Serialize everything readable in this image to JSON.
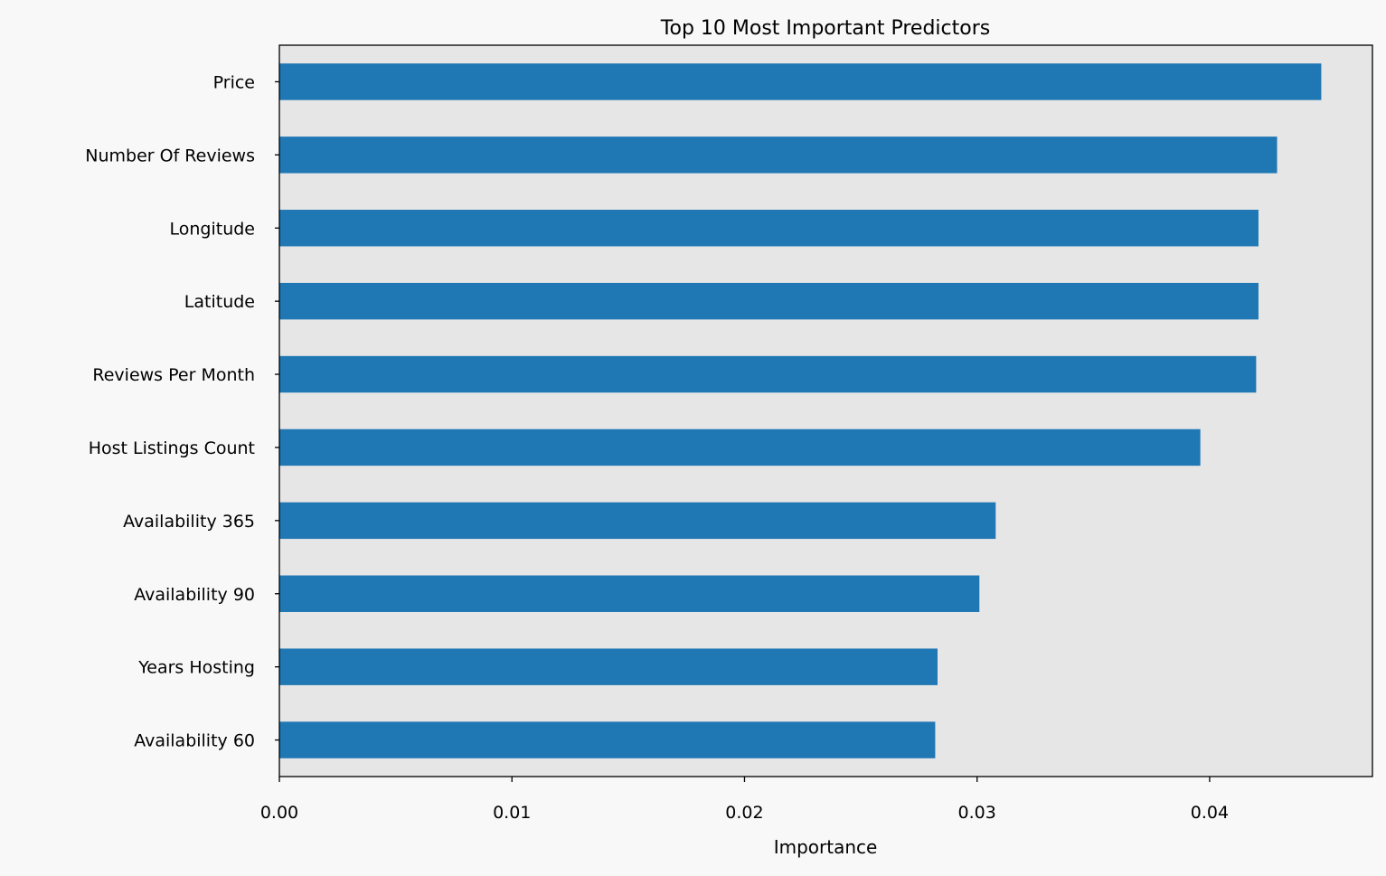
{
  "chart_data": {
    "type": "bar",
    "orientation": "horizontal",
    "title": "Top 10 Most Important Predictors",
    "xlabel": "Importance",
    "ylabel": "",
    "xlim": [
      0,
      0.047
    ],
    "xticks": [
      0.0,
      0.01,
      0.02,
      0.03,
      0.04
    ],
    "xtick_labels": [
      "0.00",
      "0.01",
      "0.02",
      "0.03",
      "0.04"
    ],
    "grid": false,
    "categories": [
      "Price",
      "Number Of Reviews",
      "Longitude",
      "Latitude",
      "Reviews Per Month",
      "Host Listings Count",
      "Availability 365",
      "Availability 90",
      "Years Hosting",
      "Availability 60"
    ],
    "values": [
      0.0448,
      0.0429,
      0.0421,
      0.0421,
      0.042,
      0.0396,
      0.0308,
      0.0301,
      0.0283,
      0.0282
    ]
  },
  "colors": {
    "bar": "#1f77b4",
    "plot_background": "#e6e6e7",
    "page_background": "#f8f8f8",
    "axes_edge": "#000000"
  }
}
